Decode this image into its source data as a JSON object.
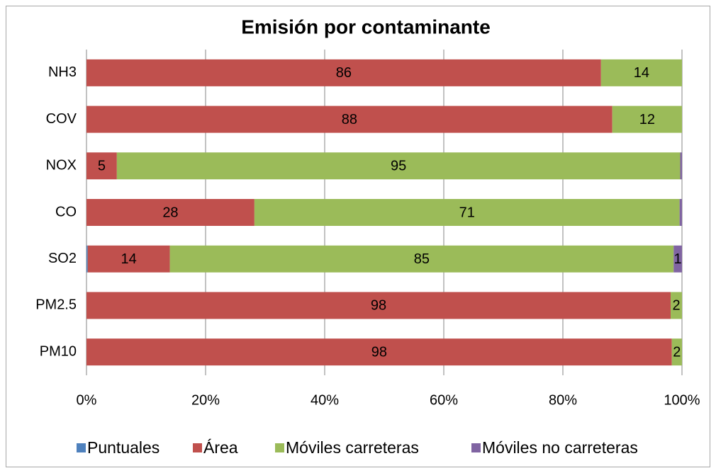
{
  "chart_data": {
    "type": "stacked-barh",
    "title": "Emisión por contaminante",
    "categories": [
      "NH3",
      "COV",
      "NOX",
      "CO",
      "SO2",
      "PM2.5",
      "PM10"
    ],
    "series": [
      {
        "name": "Puntuales",
        "color": "#4f81bd",
        "values": [
          0,
          0,
          0,
          0,
          0.2,
          0,
          0
        ],
        "value_labels": [
          null,
          null,
          null,
          null,
          null,
          null,
          null
        ]
      },
      {
        "name": "Área",
        "color": "#c0504d",
        "values": [
          86.4,
          88.3,
          5.1,
          28.2,
          13.8,
          98.1,
          98.3
        ],
        "value_labels": [
          "86",
          "88",
          "5",
          "28",
          "14",
          "98",
          "98"
        ]
      },
      {
        "name": "Móviles carreteras",
        "color": "#9bbb59",
        "values": [
          13.6,
          11.7,
          94.6,
          71.4,
          84.6,
          1.9,
          1.7
        ],
        "value_labels": [
          "14",
          "12",
          "95",
          "71",
          "85",
          "2",
          "2"
        ]
      },
      {
        "name": "Móviles no carreteras",
        "color": "#8064a2",
        "values": [
          0,
          0,
          0.3,
          0.4,
          1.4,
          0,
          0
        ],
        "value_labels": [
          null,
          null,
          null,
          null,
          "1",
          null,
          null
        ]
      }
    ],
    "xlim": [
      0,
      100
    ],
    "xticks": [
      {
        "value": 0,
        "label": "0%"
      },
      {
        "value": 20,
        "label": "20%"
      },
      {
        "value": 40,
        "label": "40%"
      },
      {
        "value": 60,
        "label": "60%"
      },
      {
        "value": 80,
        "label": "80%"
      },
      {
        "value": 100,
        "label": "100%"
      }
    ],
    "grid": true,
    "legend": "bottom"
  }
}
